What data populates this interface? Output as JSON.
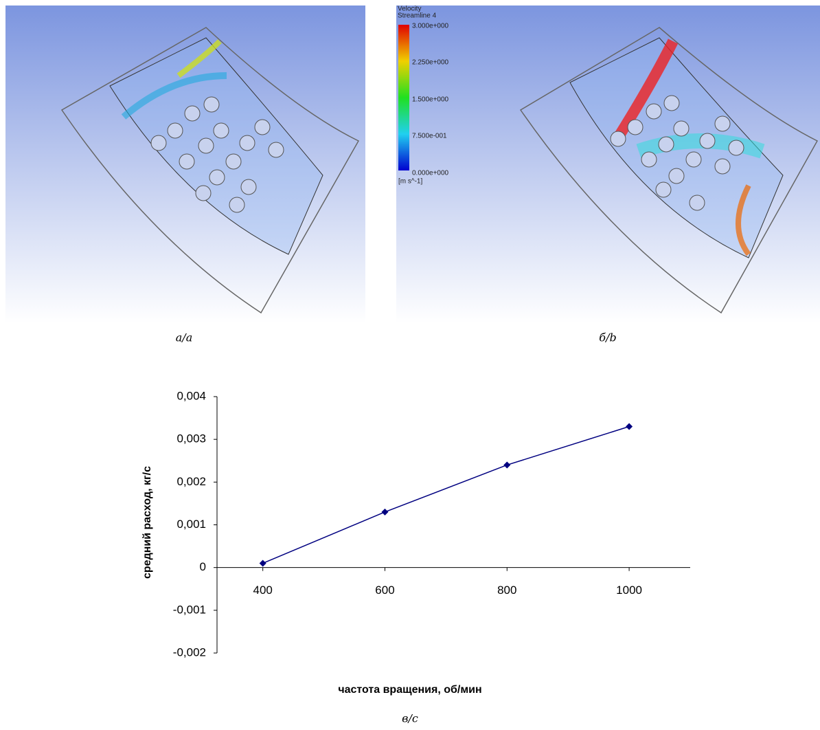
{
  "figure": {
    "captions": [
      "а/a",
      "б/b",
      "в/c"
    ]
  },
  "colorbar": {
    "title": "Velocity",
    "subtitle": "Streamline 4",
    "labels": [
      "3.000e+000",
      "2.250e+000",
      "1.500e+000",
      "7.500e-001",
      "0.000e+000"
    ],
    "unit": "[m s^-1]"
  },
  "chart_data": {
    "type": "line",
    "x_label": "частота вращения, об/мин",
    "y_label": "средний расход, кг/с",
    "x": [
      400,
      600,
      800,
      1000
    ],
    "series": [
      {
        "color": "#000080",
        "values": [
          0.0001,
          0.0013,
          0.0024,
          0.0033
        ]
      }
    ],
    "xlim": [
      325,
      1100
    ],
    "xticks": [
      400,
      600,
      800,
      1000
    ],
    "ylim": [
      -0.002,
      0.004
    ],
    "yticks": [
      {
        "value": -0.002,
        "label": "-0,002"
      },
      {
        "value": -0.001,
        "label": "-0,001"
      },
      0,
      {
        "value": 0.001,
        "label": "0,001"
      },
      {
        "value": 0.002,
        "label": "0,002"
      },
      {
        "value": 0.003,
        "label": "0,003"
      },
      {
        "value": 0.004,
        "label": "0,004"
      }
    ],
    "grid": false
  }
}
